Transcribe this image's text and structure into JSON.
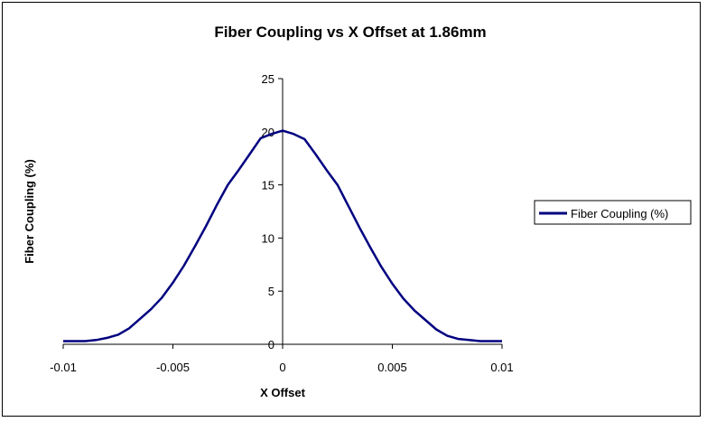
{
  "chart_data": {
    "type": "line",
    "title": "Fiber Coupling vs X Offset at 1.86mm",
    "xlabel": "X Offset",
    "ylabel": "Fiber Coupling (%)",
    "xlim": [
      -0.01,
      0.01
    ],
    "ylim": [
      0,
      25
    ],
    "x_ticks": [
      "-0.01",
      "-0.005",
      "0",
      "0.005",
      "0.01"
    ],
    "y_ticks": [
      "0",
      "5",
      "10",
      "15",
      "20",
      "25"
    ],
    "grid": false,
    "legend_position": "right",
    "series": [
      {
        "name": "Fiber Coupling (%)",
        "color": "#000080",
        "x": [
          -0.01,
          -0.0095,
          -0.009,
          -0.0085,
          -0.008,
          -0.0075,
          -0.007,
          -0.0065,
          -0.006,
          -0.0055,
          -0.005,
          -0.0045,
          -0.004,
          -0.0035,
          -0.003,
          -0.0025,
          -0.002,
          -0.0015,
          -0.001,
          -0.0005,
          0,
          0.0005,
          0.001,
          0.0015,
          0.002,
          0.0025,
          0.003,
          0.0035,
          0.004,
          0.0045,
          0.005,
          0.0055,
          0.006,
          0.0065,
          0.007,
          0.0075,
          0.008,
          0.0085,
          0.009,
          0.0095,
          0.01
        ],
        "values": [
          0.3,
          0.3,
          0.3,
          0.4,
          0.6,
          0.9,
          1.5,
          2.4,
          3.3,
          4.4,
          5.8,
          7.4,
          9.2,
          11.1,
          13.1,
          15.0,
          16.4,
          17.9,
          19.4,
          19.8,
          20.1,
          19.8,
          19.3,
          17.9,
          16.4,
          15.0,
          13.0,
          11.0,
          9.1,
          7.3,
          5.7,
          4.3,
          3.2,
          2.3,
          1.4,
          0.8,
          0.5,
          0.4,
          0.3,
          0.3,
          0.3
        ]
      }
    ]
  }
}
